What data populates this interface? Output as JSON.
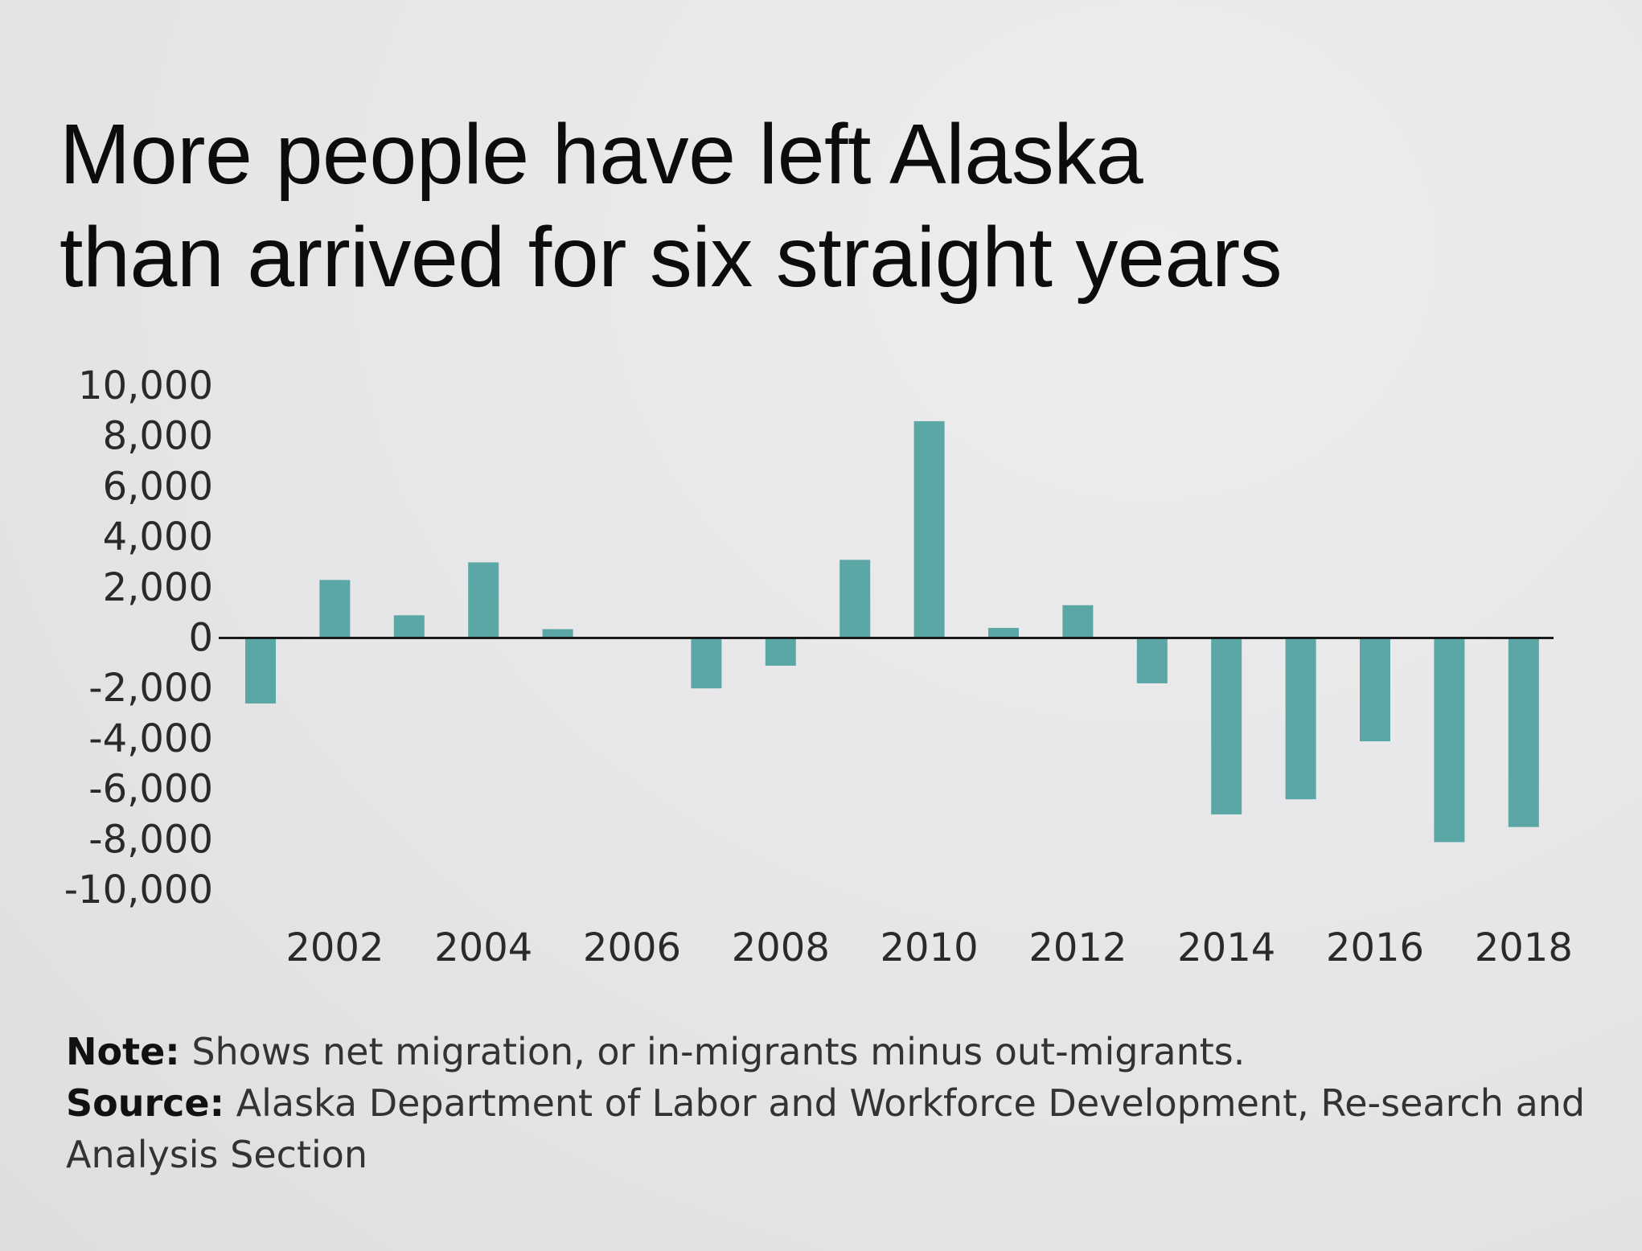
{
  "title_line1": "More people have left Alaska",
  "title_line2": "than arrived for six straight years",
  "note_label": "Note:",
  "note_text": "Shows net migration, or in-migrants minus out-migrants.",
  "source_label": "Source:",
  "source_text": "Alaska Department of Labor and Workforce Development, Re-search and Analysis Section",
  "colors": {
    "bar": "#5aa7a5",
    "zero_line": "#1a1a1a"
  },
  "chart_data": {
    "type": "bar",
    "title": "More people have left Alaska than arrived for six straight years",
    "xlabel": "",
    "ylabel": "",
    "ylim": [
      -10000,
      10000
    ],
    "yticks": [
      10000,
      8000,
      6000,
      4000,
      2000,
      0,
      -2000,
      -4000,
      -6000,
      -8000,
      -10000
    ],
    "ytick_labels": [
      "10,000",
      "8,000",
      "6,000",
      "4,000",
      "2,000",
      "0",
      "-2,000",
      "-4,000",
      "-6,000",
      "-8,000",
      "-10,000"
    ],
    "xtick_labels": [
      "2002",
      "2004",
      "2006",
      "2008",
      "2010",
      "2012",
      "2014",
      "2016",
      "2018"
    ],
    "categories": [
      "2001",
      "2002",
      "2003",
      "2004",
      "2005",
      "2006",
      "2007",
      "2008",
      "2009",
      "2010",
      "2011",
      "2012",
      "2013",
      "2014",
      "2015",
      "2016",
      "2017",
      "2018"
    ],
    "values": [
      -2600,
      2300,
      900,
      3000,
      350,
      0,
      -2000,
      -1100,
      3100,
      8600,
      400,
      1300,
      -1800,
      -7000,
      -6400,
      -4100,
      -8100,
      -7500
    ],
    "grid": false,
    "legend": "none"
  }
}
